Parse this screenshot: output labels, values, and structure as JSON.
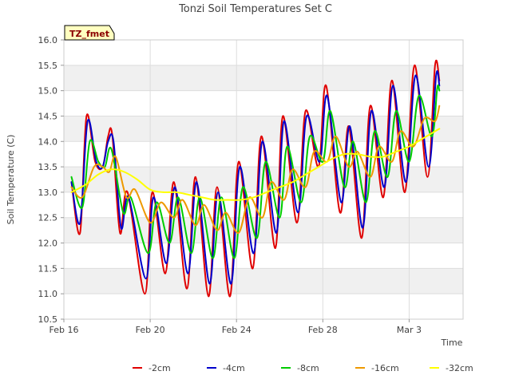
{
  "chart_data": {
    "type": "line",
    "title": "Tonzi Soil Temperatures Set C",
    "xlabel": "Time",
    "ylabel": "Soil Temperature (C)",
    "badge": "TZ_fmet",
    "xlim": [
      0,
      18.5
    ],
    "ylim": [
      10.5,
      16.0
    ],
    "x_ticks": [
      {
        "value": 0,
        "label": "Feb 16"
      },
      {
        "value": 4,
        "label": "Feb 20"
      },
      {
        "value": 8,
        "label": "Feb 24"
      },
      {
        "value": 12,
        "label": "Feb 28"
      },
      {
        "value": 16,
        "label": "Mar 3"
      }
    ],
    "y_ticks": [
      "10.5",
      "11.0",
      "11.5",
      "12.0",
      "12.5",
      "13.0",
      "13.5",
      "14.0",
      "14.5",
      "15.0",
      "15.5",
      "16.0"
    ],
    "grid": true,
    "band_fill": "#f0f0f0",
    "legend_position": "bottom",
    "x_units": "days since Feb 16",
    "series": [
      {
        "name": "-2cm",
        "color": "#e00000",
        "points": [
          [
            0.35,
            13.2
          ],
          [
            0.75,
            12.2
          ],
          [
            1.05,
            14.5
          ],
          [
            1.45,
            13.6
          ],
          [
            1.8,
            13.5
          ],
          [
            2.05,
            14.1
          ],
          [
            2.25,
            14.1
          ],
          [
            2.6,
            12.2
          ],
          [
            2.95,
            13.0
          ],
          [
            3.75,
            11.0
          ],
          [
            4.1,
            13.0
          ],
          [
            4.7,
            11.4
          ],
          [
            5.1,
            13.2
          ],
          [
            5.7,
            11.1
          ],
          [
            6.1,
            13.3
          ],
          [
            6.7,
            10.95
          ],
          [
            7.1,
            13.1
          ],
          [
            7.7,
            10.95
          ],
          [
            8.1,
            13.6
          ],
          [
            8.75,
            11.5
          ],
          [
            9.15,
            14.1
          ],
          [
            9.8,
            11.9
          ],
          [
            10.15,
            14.5
          ],
          [
            10.8,
            12.4
          ],
          [
            11.2,
            14.6
          ],
          [
            11.8,
            13.5
          ],
          [
            12.15,
            15.1
          ],
          [
            12.8,
            12.6
          ],
          [
            13.2,
            14.3
          ],
          [
            13.8,
            12.1
          ],
          [
            14.2,
            14.7
          ],
          [
            14.8,
            12.9
          ],
          [
            15.2,
            15.2
          ],
          [
            15.8,
            13.0
          ],
          [
            16.25,
            15.5
          ],
          [
            16.85,
            13.3
          ],
          [
            17.2,
            15.5
          ],
          [
            17.4,
            15.2
          ]
        ]
      },
      {
        "name": "-4cm",
        "color": "#0000cc",
        "points": [
          [
            0.35,
            13.2
          ],
          [
            0.75,
            12.4
          ],
          [
            1.1,
            14.4
          ],
          [
            1.5,
            13.6
          ],
          [
            1.8,
            13.5
          ],
          [
            2.05,
            14.0
          ],
          [
            2.3,
            14.0
          ],
          [
            2.65,
            12.3
          ],
          [
            3.0,
            12.9
          ],
          [
            3.8,
            11.3
          ],
          [
            4.15,
            12.9
          ],
          [
            4.75,
            11.6
          ],
          [
            5.15,
            13.1
          ],
          [
            5.75,
            11.4
          ],
          [
            6.15,
            13.2
          ],
          [
            6.75,
            11.2
          ],
          [
            7.15,
            13.0
          ],
          [
            7.75,
            11.2
          ],
          [
            8.15,
            13.5
          ],
          [
            8.8,
            11.8
          ],
          [
            9.2,
            14.0
          ],
          [
            9.85,
            12.2
          ],
          [
            10.2,
            14.4
          ],
          [
            10.85,
            12.6
          ],
          [
            11.25,
            14.5
          ],
          [
            11.85,
            13.6
          ],
          [
            12.2,
            14.9
          ],
          [
            12.85,
            12.8
          ],
          [
            13.25,
            14.3
          ],
          [
            13.85,
            12.3
          ],
          [
            14.25,
            14.6
          ],
          [
            14.85,
            13.1
          ],
          [
            15.25,
            15.1
          ],
          [
            15.85,
            13.2
          ],
          [
            16.3,
            15.3
          ],
          [
            16.9,
            13.5
          ],
          [
            17.25,
            15.3
          ],
          [
            17.4,
            15.1
          ]
        ]
      },
      {
        "name": "-8cm",
        "color": "#00cc00",
        "points": [
          [
            0.35,
            13.3
          ],
          [
            0.85,
            12.7
          ],
          [
            1.2,
            14.0
          ],
          [
            1.6,
            13.6
          ],
          [
            1.9,
            13.5
          ],
          [
            2.2,
            13.85
          ],
          [
            2.75,
            12.6
          ],
          [
            3.1,
            12.9
          ],
          [
            3.9,
            11.8
          ],
          [
            4.3,
            12.8
          ],
          [
            4.9,
            12.0
          ],
          [
            5.3,
            12.9
          ],
          [
            5.9,
            11.8
          ],
          [
            6.3,
            12.9
          ],
          [
            6.9,
            11.7
          ],
          [
            7.3,
            12.9
          ],
          [
            7.9,
            11.7
          ],
          [
            8.3,
            13.1
          ],
          [
            8.95,
            12.1
          ],
          [
            9.35,
            13.6
          ],
          [
            10.0,
            12.5
          ],
          [
            10.35,
            13.9
          ],
          [
            11.0,
            12.8
          ],
          [
            11.4,
            14.1
          ],
          [
            12.0,
            13.6
          ],
          [
            12.35,
            14.6
          ],
          [
            13.0,
            13.1
          ],
          [
            13.4,
            14.0
          ],
          [
            14.0,
            12.8
          ],
          [
            14.4,
            14.2
          ],
          [
            15.0,
            13.3
          ],
          [
            15.4,
            14.6
          ],
          [
            16.0,
            13.6
          ],
          [
            16.45,
            14.9
          ],
          [
            17.05,
            14.1
          ],
          [
            17.3,
            15.05
          ],
          [
            17.4,
            15.0
          ]
        ]
      },
      {
        "name": "-16cm",
        "color": "#ee9900",
        "points": [
          [
            0.35,
            13.1
          ],
          [
            0.85,
            12.9
          ],
          [
            1.4,
            13.5
          ],
          [
            1.8,
            13.5
          ],
          [
            2.1,
            13.4
          ],
          [
            2.4,
            13.7
          ],
          [
            2.9,
            12.9
          ],
          [
            3.3,
            13.05
          ],
          [
            4.0,
            12.4
          ],
          [
            4.5,
            12.8
          ],
          [
            5.1,
            12.5
          ],
          [
            5.5,
            12.85
          ],
          [
            6.1,
            12.35
          ],
          [
            6.5,
            12.75
          ],
          [
            7.1,
            12.25
          ],
          [
            7.5,
            12.6
          ],
          [
            8.1,
            12.2
          ],
          [
            8.6,
            12.9
          ],
          [
            9.2,
            12.5
          ],
          [
            9.6,
            13.2
          ],
          [
            10.2,
            12.85
          ],
          [
            10.6,
            13.45
          ],
          [
            11.2,
            13.1
          ],
          [
            11.6,
            13.8
          ],
          [
            12.2,
            13.6
          ],
          [
            12.6,
            14.1
          ],
          [
            13.2,
            13.5
          ],
          [
            13.6,
            13.8
          ],
          [
            14.2,
            13.3
          ],
          [
            14.6,
            13.9
          ],
          [
            15.2,
            13.6
          ],
          [
            15.6,
            14.2
          ],
          [
            16.2,
            13.9
          ],
          [
            16.7,
            14.45
          ],
          [
            17.2,
            14.4
          ],
          [
            17.4,
            14.7
          ]
        ]
      },
      {
        "name": "-32cm",
        "color": "#ffff00",
        "points": [
          [
            0.35,
            13.0
          ],
          [
            1.0,
            13.15
          ],
          [
            1.6,
            13.35
          ],
          [
            2.2,
            13.45
          ],
          [
            2.8,
            13.4
          ],
          [
            3.4,
            13.25
          ],
          [
            4.0,
            13.05
          ],
          [
            4.6,
            13.0
          ],
          [
            5.2,
            13.0
          ],
          [
            5.8,
            12.95
          ],
          [
            6.4,
            12.9
          ],
          [
            7.0,
            12.85
          ],
          [
            7.6,
            12.85
          ],
          [
            8.2,
            12.85
          ],
          [
            8.8,
            12.9
          ],
          [
            9.4,
            13.0
          ],
          [
            10.0,
            13.1
          ],
          [
            10.6,
            13.2
          ],
          [
            11.2,
            13.35
          ],
          [
            11.8,
            13.5
          ],
          [
            12.4,
            13.65
          ],
          [
            13.0,
            13.75
          ],
          [
            13.6,
            13.75
          ],
          [
            14.2,
            13.7
          ],
          [
            14.8,
            13.7
          ],
          [
            15.4,
            13.8
          ],
          [
            16.0,
            13.9
          ],
          [
            16.6,
            14.05
          ],
          [
            17.2,
            14.2
          ],
          [
            17.4,
            14.25
          ]
        ]
      }
    ]
  }
}
